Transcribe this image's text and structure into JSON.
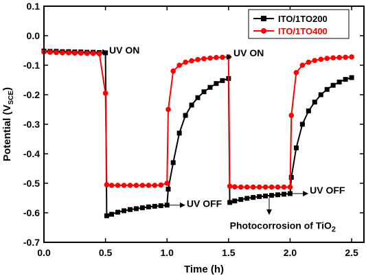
{
  "chart_data": {
    "type": "line",
    "xlabel": "Time (h)",
    "ylabel_main": "Potential (V",
    "ylabel_sub": "SCE",
    "ylabel_close": ")",
    "xlim": [
      0.0,
      2.6
    ],
    "ylim": [
      -0.7,
      0.1
    ],
    "xticks": [
      "0.0",
      "0.5",
      "1.0",
      "1.5",
      "2.0",
      "2.5"
    ],
    "yticks": [
      "0.1",
      "0.0",
      "-0.1",
      "-0.2",
      "-0.3",
      "-0.4",
      "-0.5",
      "-0.6",
      "-0.7"
    ],
    "legend_position": "top-right",
    "series": [
      {
        "name": "ITO/1TO200",
        "color": "#000000",
        "marker": "square",
        "points": [
          [
            0.0,
            -0.052
          ],
          [
            0.05,
            -0.053
          ],
          [
            0.1,
            -0.053
          ],
          [
            0.15,
            -0.054
          ],
          [
            0.2,
            -0.054
          ],
          [
            0.25,
            -0.055
          ],
          [
            0.3,
            -0.055
          ],
          [
            0.35,
            -0.056
          ],
          [
            0.4,
            -0.056
          ],
          [
            0.45,
            -0.057
          ],
          [
            0.5,
            -0.058
          ],
          [
            0.51,
            -0.61
          ],
          [
            0.55,
            -0.605
          ],
          [
            0.6,
            -0.598
          ],
          [
            0.65,
            -0.593
          ],
          [
            0.7,
            -0.589
          ],
          [
            0.75,
            -0.586
          ],
          [
            0.8,
            -0.583
          ],
          [
            0.85,
            -0.58
          ],
          [
            0.9,
            -0.578
          ],
          [
            0.95,
            -0.576
          ],
          [
            1.0,
            -0.574
          ],
          [
            1.01,
            -0.52
          ],
          [
            1.05,
            -0.43
          ],
          [
            1.1,
            -0.33
          ],
          [
            1.15,
            -0.27
          ],
          [
            1.2,
            -0.235
          ],
          [
            1.25,
            -0.21
          ],
          [
            1.3,
            -0.19
          ],
          [
            1.35,
            -0.175
          ],
          [
            1.4,
            -0.162
          ],
          [
            1.45,
            -0.152
          ],
          [
            1.5,
            -0.145
          ],
          [
            1.51,
            -0.565
          ],
          [
            1.55,
            -0.56
          ],
          [
            1.6,
            -0.555
          ],
          [
            1.65,
            -0.551
          ],
          [
            1.7,
            -0.548
          ],
          [
            1.75,
            -0.545
          ],
          [
            1.8,
            -0.543
          ],
          [
            1.85,
            -0.541
          ],
          [
            1.9,
            -0.539
          ],
          [
            1.95,
            -0.537
          ],
          [
            2.0,
            -0.535
          ],
          [
            2.01,
            -0.48
          ],
          [
            2.05,
            -0.38
          ],
          [
            2.1,
            -0.3
          ],
          [
            2.15,
            -0.255
          ],
          [
            2.2,
            -0.225
          ],
          [
            2.25,
            -0.2
          ],
          [
            2.3,
            -0.182
          ],
          [
            2.35,
            -0.168
          ],
          [
            2.4,
            -0.157
          ],
          [
            2.45,
            -0.148
          ],
          [
            2.5,
            -0.142
          ]
        ]
      },
      {
        "name": "ITO/1TO400",
        "color": "#ff0000",
        "marker": "circle",
        "points": [
          [
            0.0,
            -0.055
          ],
          [
            0.05,
            -0.056
          ],
          [
            0.1,
            -0.057
          ],
          [
            0.15,
            -0.058
          ],
          [
            0.2,
            -0.058
          ],
          [
            0.25,
            -0.059
          ],
          [
            0.3,
            -0.059
          ],
          [
            0.35,
            -0.06
          ],
          [
            0.4,
            -0.06
          ],
          [
            0.45,
            -0.061
          ],
          [
            0.5,
            -0.195
          ],
          [
            0.51,
            -0.505
          ],
          [
            0.55,
            -0.507
          ],
          [
            0.6,
            -0.507
          ],
          [
            0.65,
            -0.507
          ],
          [
            0.7,
            -0.507
          ],
          [
            0.75,
            -0.507
          ],
          [
            0.8,
            -0.507
          ],
          [
            0.85,
            -0.507
          ],
          [
            0.9,
            -0.507
          ],
          [
            0.95,
            -0.506
          ],
          [
            1.0,
            -0.5
          ],
          [
            1.01,
            -0.25
          ],
          [
            1.05,
            -0.12
          ],
          [
            1.1,
            -0.1
          ],
          [
            1.15,
            -0.09
          ],
          [
            1.2,
            -0.085
          ],
          [
            1.25,
            -0.081
          ],
          [
            1.3,
            -0.078
          ],
          [
            1.35,
            -0.076
          ],
          [
            1.4,
            -0.074
          ],
          [
            1.45,
            -0.073
          ],
          [
            1.5,
            -0.072
          ],
          [
            1.51,
            -0.51
          ],
          [
            1.55,
            -0.512
          ],
          [
            1.6,
            -0.513
          ],
          [
            1.65,
            -0.513
          ],
          [
            1.7,
            -0.513
          ],
          [
            1.75,
            -0.513
          ],
          [
            1.8,
            -0.513
          ],
          [
            1.85,
            -0.513
          ],
          [
            1.9,
            -0.513
          ],
          [
            1.95,
            -0.513
          ],
          [
            2.0,
            -0.513
          ],
          [
            2.01,
            -0.27
          ],
          [
            2.05,
            -0.125
          ],
          [
            2.1,
            -0.1
          ],
          [
            2.15,
            -0.09
          ],
          [
            2.2,
            -0.084
          ],
          [
            2.25,
            -0.08
          ],
          [
            2.3,
            -0.077
          ],
          [
            2.35,
            -0.075
          ],
          [
            2.4,
            -0.074
          ],
          [
            2.45,
            -0.073
          ],
          [
            2.5,
            -0.072
          ]
        ]
      }
    ],
    "annotations": [
      {
        "text": "UV ON",
        "x": 0.53,
        "y": -0.06,
        "arrow_from": [
          0.5,
          -0.055
        ]
      },
      {
        "text": "UV ON",
        "x": 1.54,
        "y": -0.07,
        "arrow_from": [
          1.51,
          -0.072
        ]
      },
      {
        "text": "UV OFF",
        "x": 1.16,
        "y": -0.58,
        "arrow_from": [
          1.0,
          -0.574
        ]
      },
      {
        "text": "UV OFF",
        "x": 2.16,
        "y": -0.535,
        "arrow_from": [
          2.0,
          -0.535
        ]
      },
      {
        "text_main": "Photocorrosion of TiO",
        "text_sub": "2",
        "x": 1.51,
        "y": -0.655,
        "arrow_from": [
          1.83,
          -0.55
        ],
        "arrow_to": [
          1.83,
          -0.605
        ]
      }
    ]
  }
}
